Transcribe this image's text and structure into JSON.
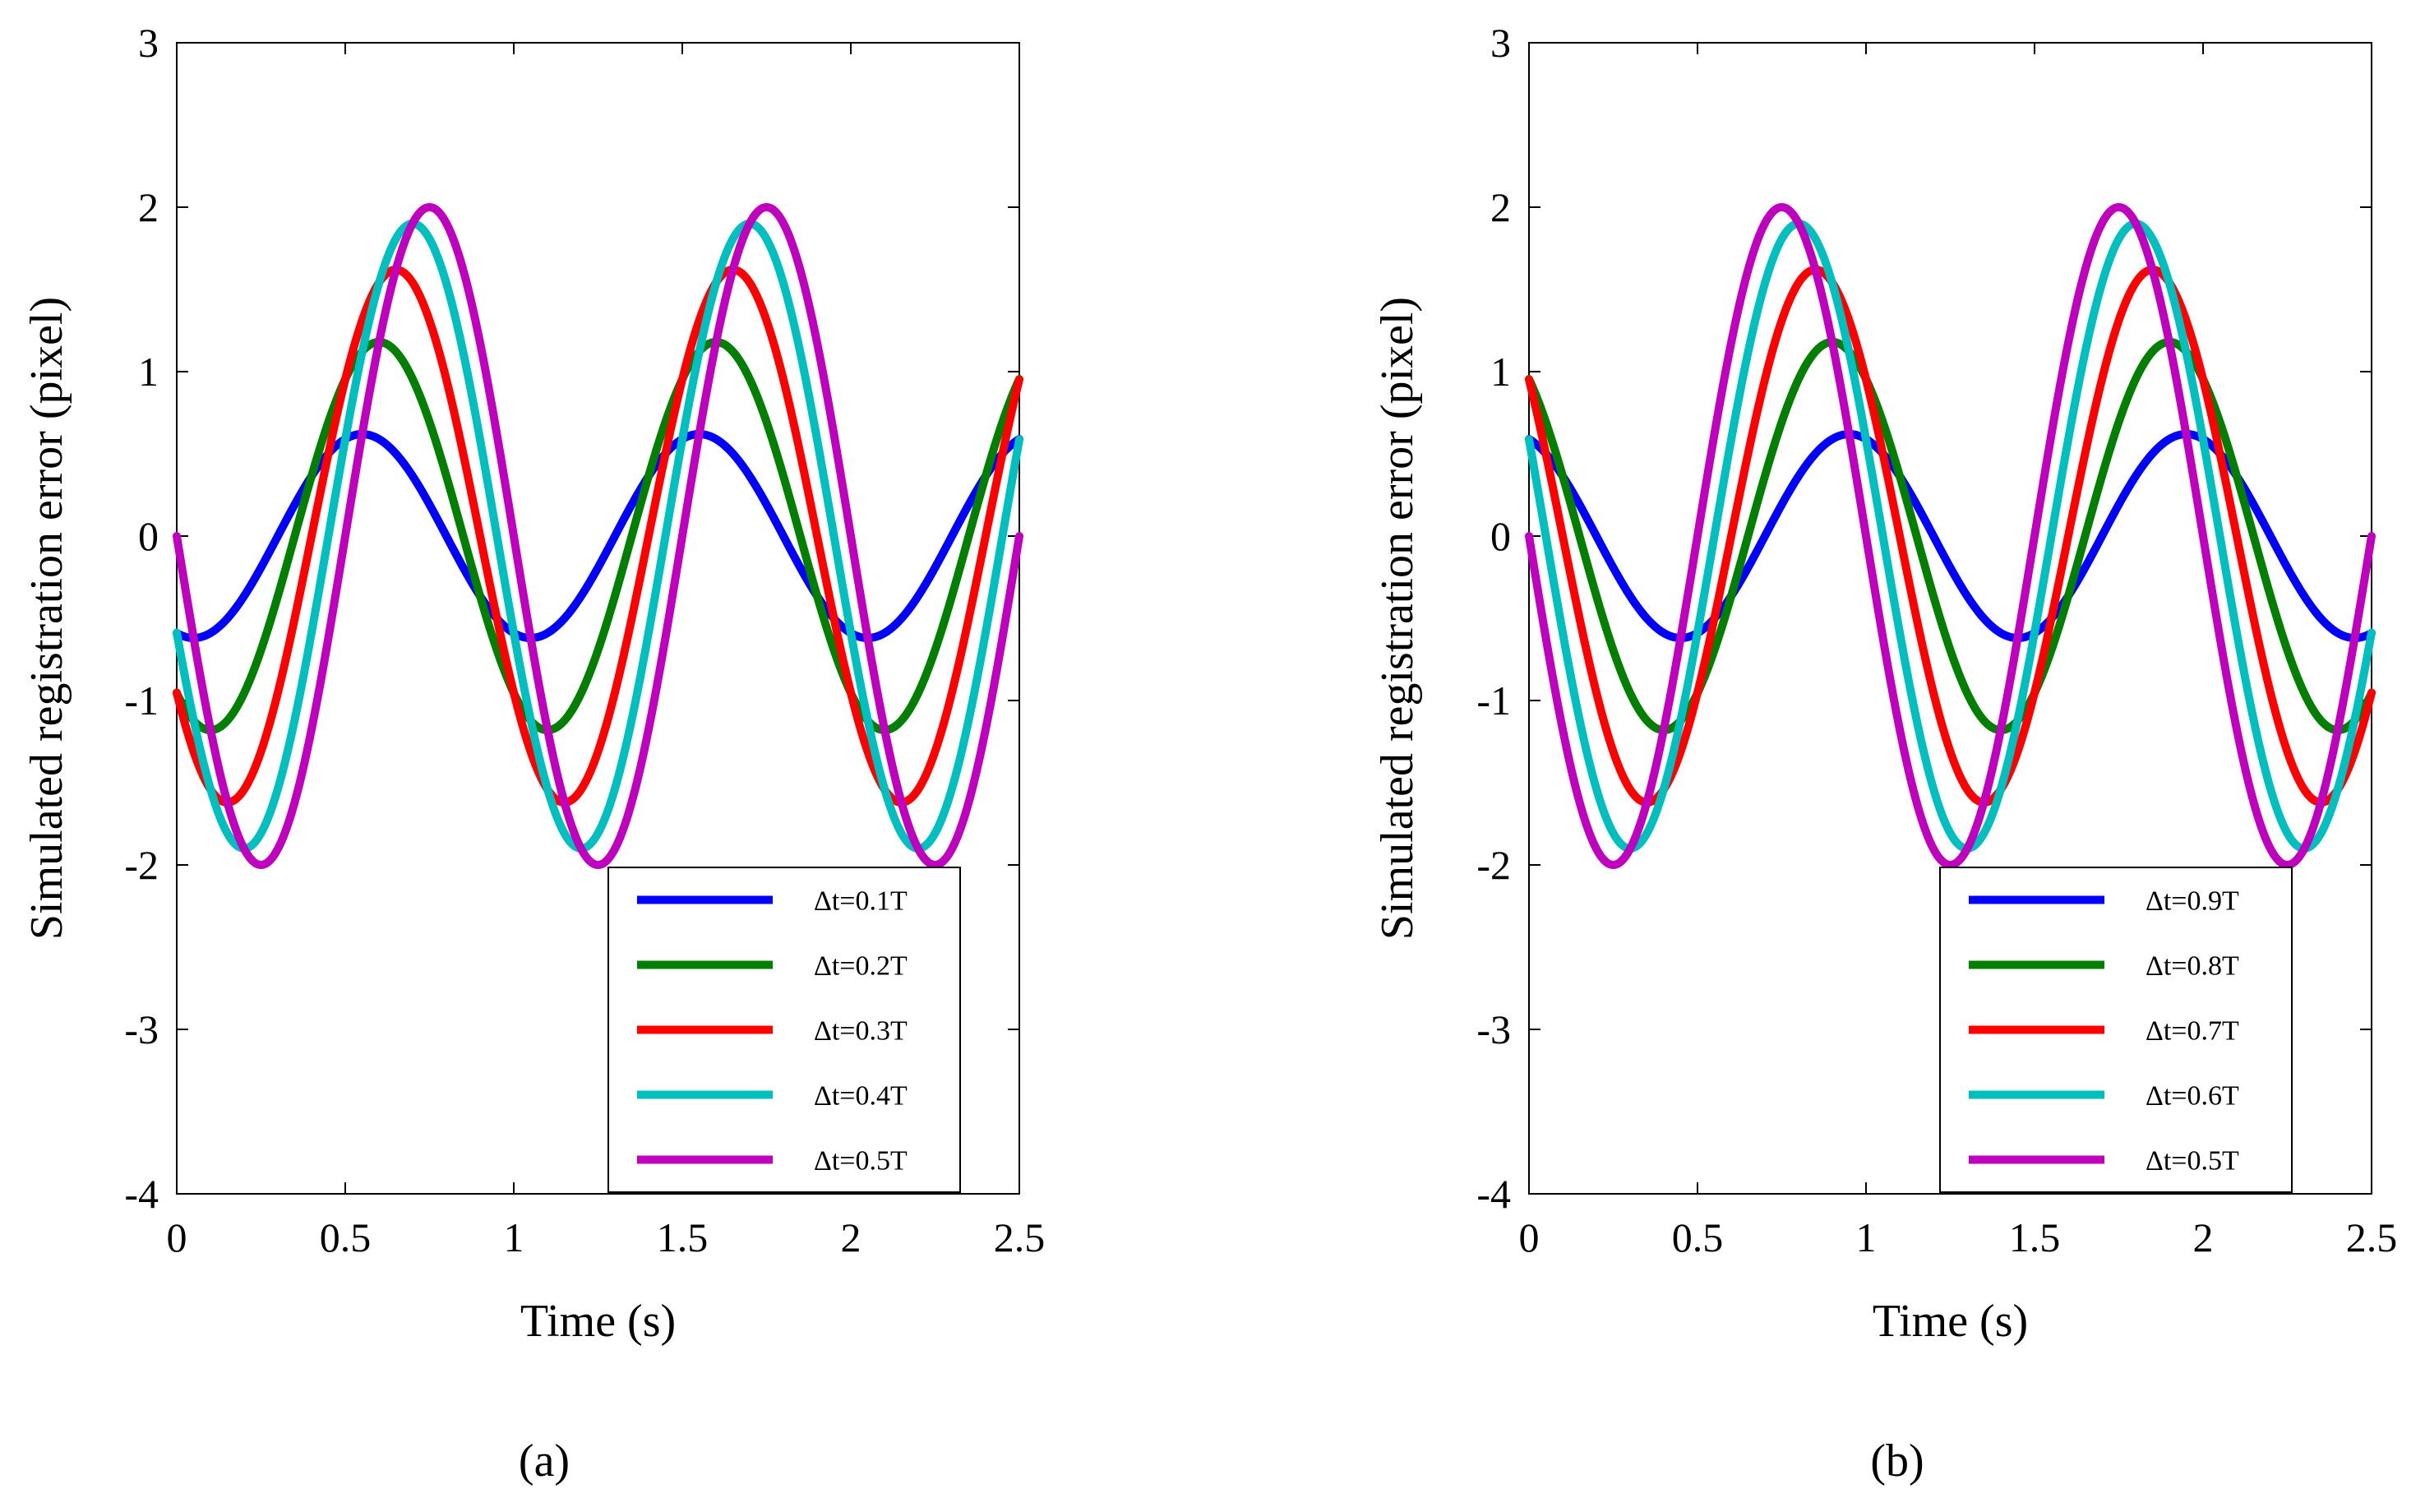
{
  "chart_data": [
    {
      "type": "line",
      "panel_label": "(a)",
      "xlabel": "Time (s)",
      "ylabel": "Simulated registration error (pixel)",
      "xlim": [
        0,
        2.5
      ],
      "ylim": [
        -4,
        3
      ],
      "x_ticks": [
        0,
        0.5,
        1,
        1.5,
        2,
        2.5
      ],
      "x_tick_labels": [
        "0",
        "0.5",
        "1",
        "1.5",
        "2",
        "2.5"
      ],
      "y_ticks": [
        -4,
        -3,
        -2,
        -1,
        0,
        1,
        2,
        3
      ],
      "y_tick_labels": [
        "-4",
        "-3",
        "-2",
        "-1",
        "0",
        "1",
        "2",
        "3"
      ],
      "grid": false,
      "legend_position": "bottom-right",
      "series": [
        {
          "name": "Δt=0.1T",
          "dt": 0.1,
          "amplitude": 0.62,
          "color": "#0000ff"
        },
        {
          "name": "Δt=0.2T",
          "dt": 0.2,
          "amplitude": 1.18,
          "color": "#007f00"
        },
        {
          "name": "Δt=0.3T",
          "dt": 0.3,
          "amplitude": 1.62,
          "color": "#ff0000"
        },
        {
          "name": "Δt=0.4T",
          "dt": 0.4,
          "amplitude": 1.9,
          "color": "#00bfbf"
        },
        {
          "name": "Δt=0.5T",
          "dt": 0.5,
          "amplitude": 2.0,
          "color": "#bf00bf"
        }
      ]
    },
    {
      "type": "line",
      "panel_label": "(b)",
      "xlabel": "Time (s)",
      "ylabel": "Simulated registration error (pixel)",
      "xlim": [
        0,
        2.5
      ],
      "ylim": [
        -4,
        3
      ],
      "x_ticks": [
        0,
        0.5,
        1,
        1.5,
        2,
        2.5
      ],
      "x_tick_labels": [
        "0",
        "0.5",
        "1",
        "1.5",
        "2",
        "2.5"
      ],
      "y_ticks": [
        -4,
        -3,
        -2,
        -1,
        0,
        1,
        2,
        3
      ],
      "y_tick_labels": [
        "-4",
        "-3",
        "-2",
        "-1",
        "0",
        "1",
        "2",
        "3"
      ],
      "grid": false,
      "legend_position": "bottom-right",
      "series": [
        {
          "name": "Δt=0.9T",
          "dt": 0.9,
          "amplitude": 0.62,
          "color": "#0000ff"
        },
        {
          "name": "Δt=0.8T",
          "dt": 0.8,
          "amplitude": 1.18,
          "color": "#007f00"
        },
        {
          "name": "Δt=0.7T",
          "dt": 0.7,
          "amplitude": 1.62,
          "color": "#ff0000"
        },
        {
          "name": "Δt=0.6T",
          "dt": 0.6,
          "amplitude": 1.9,
          "color": "#00bfbf"
        },
        {
          "name": "Δt=0.5T",
          "dt": 0.5,
          "amplitude": 2.0,
          "color": "#bf00bf"
        }
      ]
    }
  ]
}
